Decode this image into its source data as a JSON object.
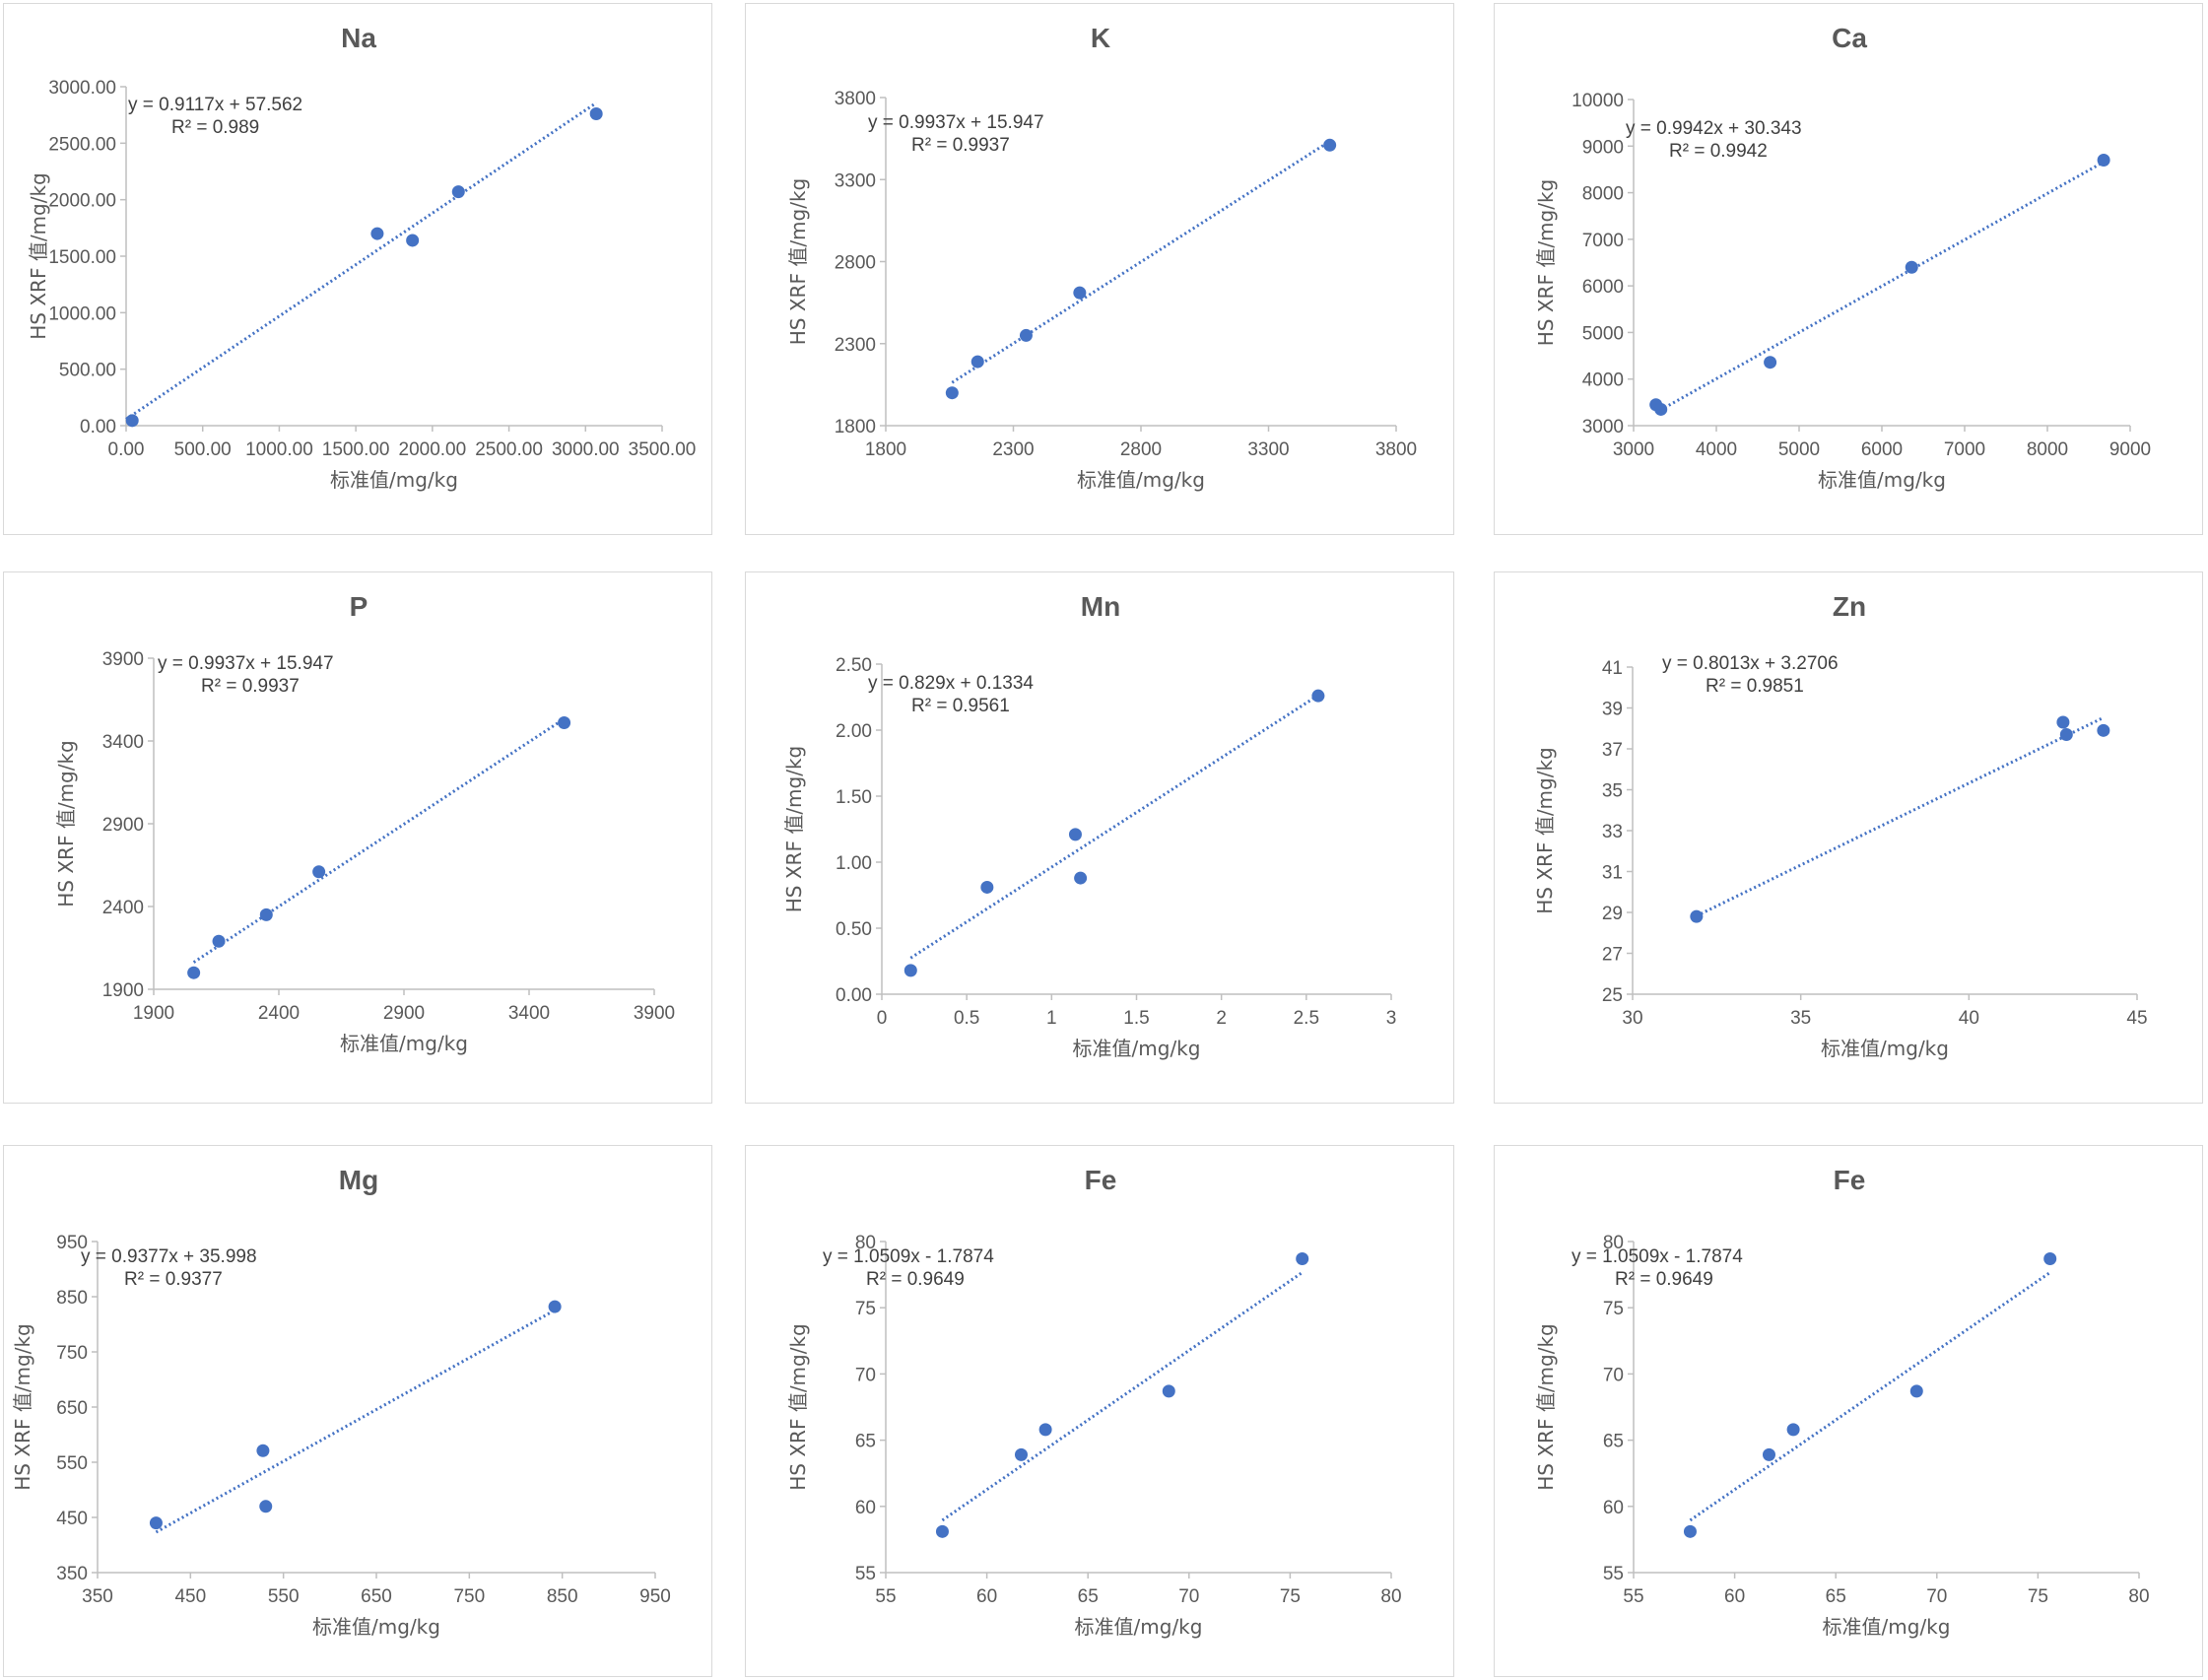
{
  "colors": {
    "marker": "#4472c4",
    "trendline": "#4472c4",
    "axis": "#bfbfbf",
    "text": "#595959",
    "border": "#d9d9d9"
  },
  "chart_data": [
    {
      "type": "scatter",
      "title": "Na",
      "xlabel": "标准值/mg/kg",
      "ylabel": "HS XRF 值/mg/kg",
      "xlim": [
        0,
        3500
      ],
      "ylim": [
        0,
        3000
      ],
      "xstep": 500,
      "ystep": 500,
      "decimals": 2,
      "xticklabels": [
        "0.00",
        "500.00",
        "1000.00",
        "1500.00",
        "2000.00",
        "2500.00",
        "3000.00",
        "3500.00"
      ],
      "yticklabels": [
        "0.00",
        "500.00",
        "1000.00",
        "1500.00",
        "2000.00",
        "2500.00",
        "3000.00"
      ],
      "points": [
        [
          40,
          45
        ],
        [
          1640,
          1700
        ],
        [
          1870,
          1640
        ],
        [
          2170,
          2070
        ],
        [
          3070,
          2760
        ]
      ],
      "trendline": {
        "slope": 0.9117,
        "intercept": 57.562,
        "x_range": [
          0,
          3070
        ]
      },
      "equation": "y = 0.9117x + 57.562",
      "r2": "R² = 0.989"
    },
    {
      "type": "scatter",
      "title": "K",
      "xlabel": "标准值/mg/kg",
      "ylabel": "HS XRF 值/mg/kg",
      "xlim": [
        1800,
        3800
      ],
      "ylim": [
        1800,
        3800
      ],
      "xstep": 500,
      "ystep": 500,
      "decimals": 0,
      "xticklabels": [
        "1800",
        "2300",
        "2800",
        "3300",
        "3800"
      ],
      "yticklabels": [
        "1800",
        "2300",
        "2800",
        "3300",
        "3800"
      ],
      "points": [
        [
          2060,
          2000
        ],
        [
          2160,
          2190
        ],
        [
          2350,
          2350
        ],
        [
          2560,
          2610
        ],
        [
          3540,
          3510
        ]
      ],
      "trendline": {
        "slope": 0.9937,
        "intercept": 15.947,
        "x_range": [
          2060,
          3540
        ]
      },
      "equation": "y = 0.9937x + 15.947",
      "r2": "R² = 0.9937"
    },
    {
      "type": "scatter",
      "title": "Ca",
      "xlabel": "标准值/mg/kg",
      "ylabel": "HS XRF 值/mg/kg",
      "xlim": [
        3000,
        9000
      ],
      "ylim": [
        3000,
        10000
      ],
      "xstep": 1000,
      "ystep": 1000,
      "decimals": 0,
      "xticklabels": [
        "3000",
        "4000",
        "5000",
        "6000",
        "7000",
        "8000",
        "9000"
      ],
      "yticklabels": [
        "3000",
        "4000",
        "5000",
        "6000",
        "7000",
        "8000",
        "9000",
        "10000"
      ],
      "points": [
        [
          3270,
          3450
        ],
        [
          3330,
          3350
        ],
        [
          4650,
          4360
        ],
        [
          6360,
          6400
        ],
        [
          8680,
          8700
        ]
      ],
      "trendline": {
        "slope": 0.9942,
        "intercept": 30.343,
        "x_range": [
          3270,
          8680
        ]
      },
      "equation": "y = 0.9942x + 30.343",
      "r2": "R² = 0.9942"
    },
    {
      "type": "scatter",
      "title": "P",
      "xlabel": "标准值/mg/kg",
      "ylabel": "HS XRF 值/mg/kg",
      "xlim": [
        1900,
        3900
      ],
      "ylim": [
        1900,
        3900
      ],
      "xstep": 500,
      "ystep": 500,
      "decimals": 0,
      "xticklabels": [
        "1900",
        "2400",
        "2900",
        "3400",
        "3900"
      ],
      "yticklabels": [
        "1900",
        "2400",
        "2900",
        "3400",
        "3900"
      ],
      "points": [
        [
          2060,
          2000
        ],
        [
          2160,
          2190
        ],
        [
          2350,
          2350
        ],
        [
          2560,
          2610
        ],
        [
          3540,
          3510
        ]
      ],
      "trendline": {
        "slope": 0.9937,
        "intercept": 15.947,
        "x_range": [
          2060,
          3540
        ]
      },
      "equation": "y = 0.9937x + 15.947",
      "r2": "R² = 0.9937"
    },
    {
      "type": "scatter",
      "title": "Mn",
      "xlabel": "标准值/mg/kg",
      "ylabel": "HS XRF 值/mg/kg",
      "xlim": [
        0,
        3
      ],
      "ylim": [
        0,
        2.5
      ],
      "xstep": 0.5,
      "ystep": 0.5,
      "decimals": 2,
      "xticklabels": [
        "0",
        "0.5",
        "1",
        "1.5",
        "2",
        "2.5",
        "3"
      ],
      "yticklabels": [
        "0.00",
        "0.50",
        "1.00",
        "1.50",
        "2.00",
        "2.50"
      ],
      "points": [
        [
          0.17,
          0.18
        ],
        [
          0.62,
          0.81
        ],
        [
          1.14,
          1.21
        ],
        [
          1.17,
          0.88
        ],
        [
          2.57,
          2.26
        ]
      ],
      "trendline": {
        "slope": 0.829,
        "intercept": 0.1334,
        "x_range": [
          0.17,
          2.57
        ]
      },
      "equation": "y = 0.829x + 0.1334",
      "r2": "R² = 0.9561"
    },
    {
      "type": "scatter",
      "title": "Zn",
      "xlabel": "标准值/mg/kg",
      "ylabel": "HS XRF 值/mg/kg",
      "xlim": [
        30,
        45
      ],
      "ylim": [
        25,
        41
      ],
      "xstep": 5,
      "ystep": 2,
      "decimals": 0,
      "xticklabels": [
        "30",
        "35",
        "40",
        "45"
      ],
      "yticklabels": [
        "25",
        "27",
        "29",
        "31",
        "33",
        "35",
        "37",
        "39",
        "41"
      ],
      "points": [
        [
          31.9,
          28.8
        ],
        [
          42.8,
          38.3
        ],
        [
          42.9,
          37.7
        ],
        [
          44.0,
          37.9
        ]
      ],
      "trendline": {
        "slope": 0.8013,
        "intercept": 3.2706,
        "x_range": [
          31.9,
          44.0
        ]
      },
      "equation": "y = 0.8013x + 3.2706",
      "r2": "R² = 0.9851"
    },
    {
      "type": "scatter",
      "title": "Mg",
      "xlabel": "标准值/mg/kg",
      "ylabel": "HS XRF 值/mg/kg",
      "xlim": [
        350,
        950
      ],
      "ylim": [
        350,
        950
      ],
      "xstep": 100,
      "ystep": 100,
      "decimals": 0,
      "xticklabels": [
        "350",
        "450",
        "550",
        "650",
        "750",
        "850",
        "950"
      ],
      "yticklabels": [
        "350",
        "450",
        "550",
        "650",
        "750",
        "850",
        "950"
      ],
      "points": [
        [
          413,
          440
        ],
        [
          528,
          571
        ],
        [
          531,
          470
        ],
        [
          842,
          832
        ]
      ],
      "trendline": {
        "slope": 0.9377,
        "intercept": 35.998,
        "x_range": [
          413,
          842
        ]
      },
      "equation": "y = 0.9377x + 35.998",
      "r2": "R² = 0.9377"
    },
    {
      "type": "scatter",
      "title": "Fe",
      "xlabel": "标准值/mg/kg",
      "ylabel": "HS XRF 值/mg/kg",
      "xlim": [
        55,
        80
      ],
      "ylim": [
        55,
        80
      ],
      "xstep": 5,
      "ystep": 5,
      "decimals": 0,
      "xticklabels": [
        "55",
        "60",
        "65",
        "70",
        "75",
        "80"
      ],
      "yticklabels": [
        "55",
        "60",
        "65",
        "70",
        "75",
        "80"
      ],
      "points": [
        [
          57.8,
          58.1
        ],
        [
          61.7,
          63.9
        ],
        [
          62.9,
          65.8
        ],
        [
          69.0,
          68.7
        ],
        [
          75.6,
          78.7
        ]
      ],
      "trendline": {
        "slope": 1.0509,
        "intercept": -1.7874,
        "x_range": [
          57.8,
          75.6
        ]
      },
      "equation": "y = 1.0509x - 1.7874",
      "r2": "R² = 0.9649"
    },
    {
      "type": "scatter",
      "title": "Fe",
      "xlabel": "标准值/mg/kg",
      "ylabel": "HS XRF 值/mg/kg",
      "xlim": [
        55,
        80
      ],
      "ylim": [
        55,
        80
      ],
      "xstep": 5,
      "ystep": 5,
      "decimals": 0,
      "xticklabels": [
        "55",
        "60",
        "65",
        "70",
        "75",
        "80"
      ],
      "yticklabels": [
        "55",
        "60",
        "65",
        "70",
        "75",
        "80"
      ],
      "points": [
        [
          57.8,
          58.1
        ],
        [
          61.7,
          63.9
        ],
        [
          62.9,
          65.8
        ],
        [
          69.0,
          68.7
        ],
        [
          75.6,
          78.7
        ]
      ],
      "trendline": {
        "slope": 1.0509,
        "intercept": -1.7874,
        "x_range": [
          57.8,
          75.6
        ]
      },
      "equation": "y = 1.0509x - 1.7874",
      "r2": "R² = 0.9649"
    }
  ]
}
